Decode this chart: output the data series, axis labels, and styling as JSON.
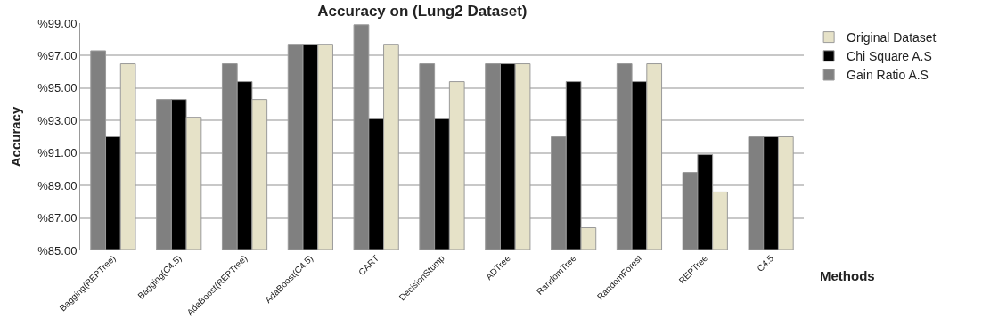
{
  "chart_data": {
    "type": "bar",
    "title": "Accuracy on (Lung2 Dataset)",
    "xlabel": "Methods",
    "ylabel": "Accuracy",
    "categories": [
      "Bagging(REPTree)",
      "Bagging(C4.5)",
      "AdaBoost(REPTree)",
      "AdaBoost(C4.5)",
      "CART",
      "DecisionStump",
      "ADTree",
      "RandomTree",
      "RandomForest",
      "REPTree",
      "C4.5"
    ],
    "series": [
      {
        "name": "Gain Ratio A.S",
        "color": "#808080",
        "values": [
          97.3,
          94.3,
          96.5,
          97.7,
          98.9,
          96.5,
          96.5,
          92.0,
          96.5,
          89.8,
          92.0
        ]
      },
      {
        "name": "Chi Square A.S",
        "color": "#000000",
        "values": [
          92.0,
          94.3,
          95.4,
          97.7,
          93.1,
          93.1,
          96.5,
          95.4,
          95.4,
          90.9,
          92.0
        ]
      },
      {
        "name": "Original Dataset",
        "color": "#e6e2c8",
        "values": [
          96.5,
          93.2,
          94.3,
          97.7,
          97.7,
          95.4,
          96.5,
          86.4,
          96.5,
          88.6,
          92.0
        ]
      }
    ],
    "ylim": [
      85,
      99
    ],
    "yticks": [
      {
        "value": 85,
        "label": "%85.00"
      },
      {
        "value": 87,
        "label": "%87.00"
      },
      {
        "value": 89,
        "label": "%89.00"
      },
      {
        "value": 91,
        "label": "%91.00"
      },
      {
        "value": 93,
        "label": "%93.00"
      },
      {
        "value": 95,
        "label": "%95.00"
      },
      {
        "value": 97,
        "label": "%97.00"
      },
      {
        "value": 99,
        "label": "%99.00"
      }
    ],
    "grid": "y",
    "legend": "top right"
  }
}
